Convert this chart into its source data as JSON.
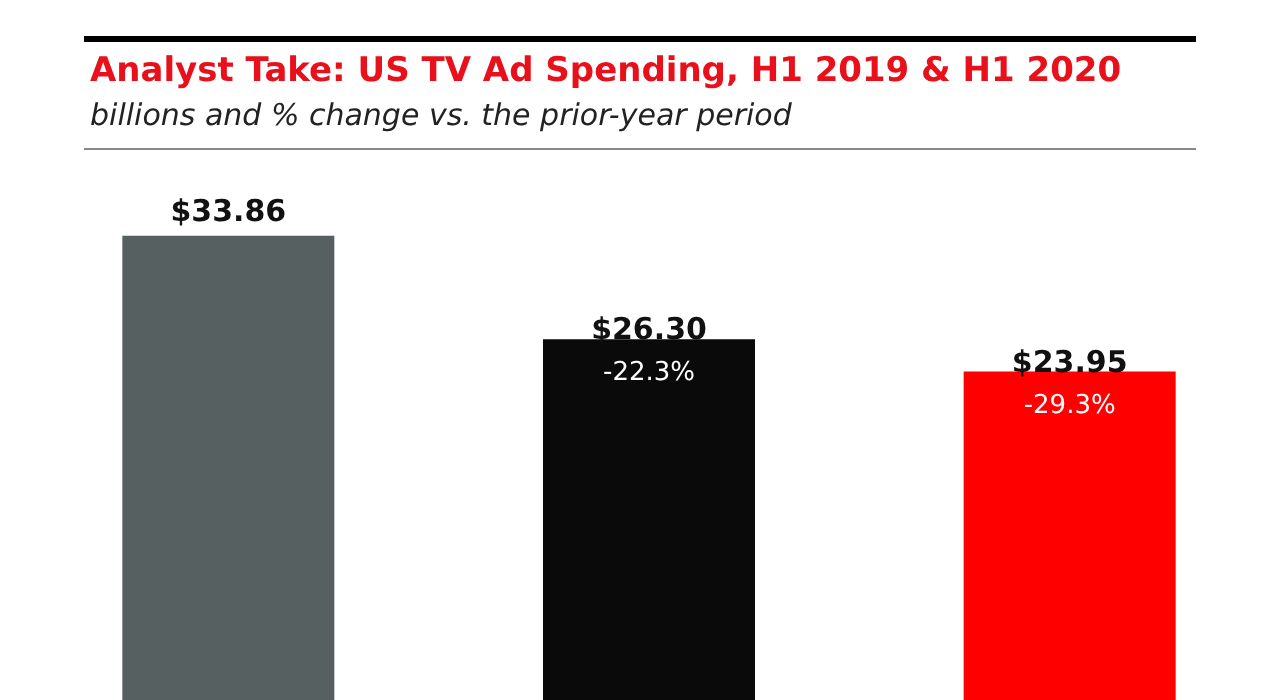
{
  "chart_data": {
    "type": "bar",
    "title": "Analyst Take: US TV Ad Spending, H1 2019 & H1 2020",
    "subtitle": "billions and % change vs. the prior-year period",
    "categories": [
      null,
      null,
      null
    ],
    "values": [
      33.86,
      26.3,
      23.95
    ],
    "colors": [
      "#566060",
      "#0a0a0a",
      "#ff0000"
    ],
    "value_labels": [
      "$33.86",
      "$26.30\n-22.3%",
      "$23.95\n-29.3%"
    ],
    "grid": false
  }
}
